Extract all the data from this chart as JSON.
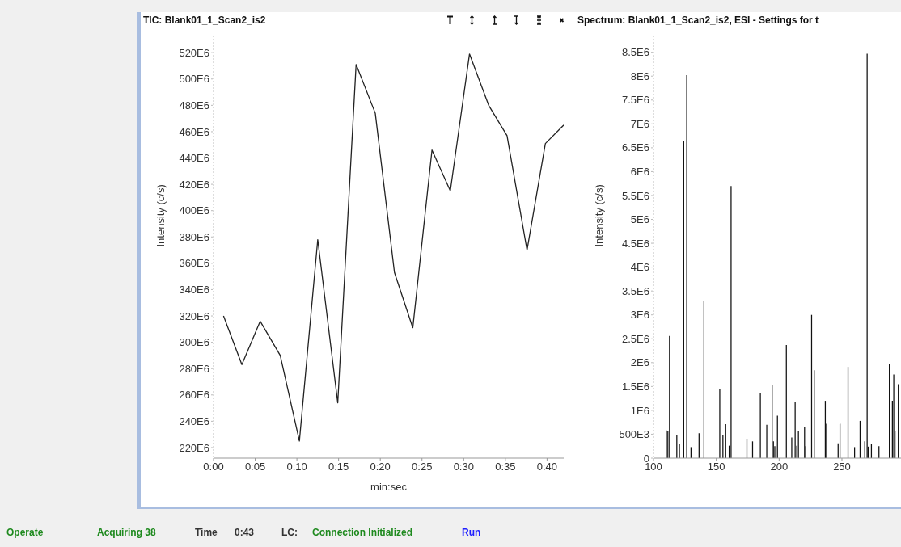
{
  "chart_data": [
    {
      "type": "line",
      "title": "TIC: Blank01_1_Scan2_is2",
      "xlabel": "min:sec",
      "ylabel": "Intensity (c/s)",
      "color": "#222222",
      "x": [
        1.2,
        3.4,
        5.6,
        8.0,
        10.3,
        12.5,
        14.9,
        17.1,
        19.4,
        21.7,
        23.9,
        26.2,
        28.4,
        30.7,
        33.0,
        35.2,
        37.6,
        39.8,
        42.0
      ],
      "values": [
        320000000,
        283000000,
        316000000,
        290000000,
        225000000,
        378000000,
        254000000,
        511000000,
        474000000,
        353000000,
        311000000,
        446000000,
        415000000,
        519000000,
        480000000,
        457000000,
        370000000,
        451000000,
        465000000
      ],
      "xlim": [
        0,
        42
      ],
      "xticks": [
        {
          "value": 0,
          "label": "0:00"
        },
        {
          "value": 5,
          "label": "0:05"
        },
        {
          "value": 10,
          "label": "0:10"
        },
        {
          "value": 15,
          "label": "0:15"
        },
        {
          "value": 20,
          "label": "0:20"
        },
        {
          "value": 25,
          "label": "0:25"
        },
        {
          "value": 30,
          "label": "0:30"
        },
        {
          "value": 35,
          "label": "0:35"
        },
        {
          "value": 40,
          "label": "0:40"
        }
      ],
      "ylim": [
        212000000,
        533000000
      ],
      "yticks": [
        {
          "value": 220000000,
          "label": "220E6"
        },
        {
          "value": 240000000,
          "label": "240E6"
        },
        {
          "value": 260000000,
          "label": "260E6"
        },
        {
          "value": 280000000,
          "label": "280E6"
        },
        {
          "value": 300000000,
          "label": "300E6"
        },
        {
          "value": 320000000,
          "label": "320E6"
        },
        {
          "value": 340000000,
          "label": "340E6"
        },
        {
          "value": 360000000,
          "label": "360E6"
        },
        {
          "value": 380000000,
          "label": "380E6"
        },
        {
          "value": 400000000,
          "label": "400E6"
        },
        {
          "value": 420000000,
          "label": "420E6"
        },
        {
          "value": 440000000,
          "label": "440E6"
        },
        {
          "value": 460000000,
          "label": "460E6"
        },
        {
          "value": 480000000,
          "label": "480E6"
        },
        {
          "value": 500000000,
          "label": "500E6"
        },
        {
          "value": 520000000,
          "label": "520E6"
        }
      ]
    },
    {
      "type": "bar",
      "title": "Spectrum: Blank01_1_Scan2_is2, ESI - Settings for t",
      "ylabel": "Intensity (c/s)",
      "color": "#111111",
      "x": [
        110.3,
        111.5,
        112.8,
        118.6,
        120.7,
        124.1,
        126.5,
        129.9,
        136.3,
        140.2,
        152.8,
        155.3,
        157.5,
        160.3,
        161.8,
        174.4,
        178.9,
        185.1,
        190.2,
        194.5,
        195.5,
        196.6,
        198.7,
        205.8,
        210.1,
        212.8,
        214.1,
        215.4,
        220.3,
        221.2,
        225.9,
        228.0,
        236.8,
        237.8,
        247.0,
        248.5,
        254.9,
        260.1,
        264.5,
        268.2,
        270.1,
        271.0,
        273.5,
        279.5,
        287.8,
        290.2,
        291.3,
        292.3,
        294.9
      ],
      "values": [
        580000,
        560000,
        2560000,
        480000,
        290000,
        6640000,
        8020000,
        230000,
        520000,
        3300000,
        1440000,
        490000,
        710000,
        260000,
        5700000,
        410000,
        350000,
        1370000,
        700000,
        1540000,
        350000,
        250000,
        890000,
        2370000,
        430000,
        1170000,
        260000,
        570000,
        660000,
        250000,
        3000000,
        1840000,
        1200000,
        720000,
        310000,
        720000,
        1910000,
        230000,
        780000,
        350000,
        8470000,
        240000,
        300000,
        250000,
        1970000,
        1200000,
        1750000,
        570000,
        1550000
      ],
      "xlim": [
        100,
        297
      ],
      "xticks": [
        100,
        150,
        200,
        250
      ],
      "ylim": [
        0,
        8850000
      ],
      "yticks": [
        0,
        {
          "value": 500000,
          "label": "500E3"
        },
        {
          "value": 1000000,
          "label": "1E6"
        },
        {
          "value": 1500000,
          "label": "1.5E6"
        },
        {
          "value": 2000000,
          "label": "2E6"
        },
        {
          "value": 2500000,
          "label": "2.5E6"
        },
        {
          "value": 3000000,
          "label": "3E6"
        },
        {
          "value": 3500000,
          "label": "3.5E6"
        },
        {
          "value": 4000000,
          "label": "4E6"
        },
        {
          "value": 4500000,
          "label": "4.5E6"
        },
        {
          "value": 5000000,
          "label": "5E6"
        },
        {
          "value": 5500000,
          "label": "5.5E6"
        },
        {
          "value": 6000000,
          "label": "6E6"
        },
        {
          "value": 6500000,
          "label": "6.5E6"
        },
        {
          "value": 7000000,
          "label": "7E6"
        },
        {
          "value": 7500000,
          "label": "7.5E6"
        },
        {
          "value": 8000000,
          "label": "8E6"
        },
        {
          "value": 8500000,
          "label": "8.5E6"
        }
      ]
    },
    {
      "type": "other",
      "annotations": [
        "Operate",
        "Acquiring 38",
        "Time",
        "0:43",
        "LC:",
        "Connection Initialized",
        "Run"
      ]
    }
  ]
}
